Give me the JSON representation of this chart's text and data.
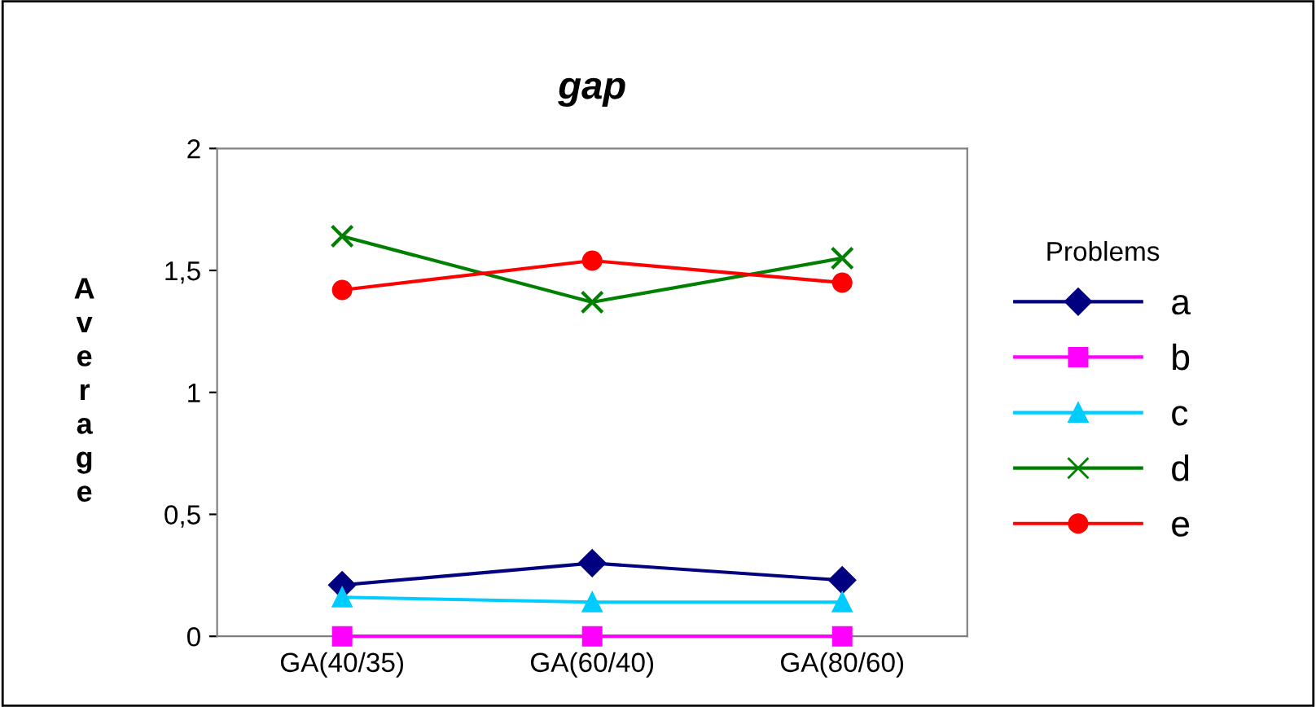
{
  "chart_data": {
    "type": "line",
    "title": "gap",
    "ylabel": "Average",
    "legend_title": "Problems",
    "categories": [
      "GA(40/35)",
      "GA(60/40)",
      "GA(80/60)"
    ],
    "series": [
      {
        "name": "a",
        "color": "#000080",
        "marker": "diamond",
        "values": [
          0.21,
          0.3,
          0.23
        ]
      },
      {
        "name": "b",
        "color": "#ff00ff",
        "marker": "square",
        "values": [
          0,
          0,
          0
        ]
      },
      {
        "name": "c",
        "color": "#00ccff",
        "marker": "triangle",
        "values": [
          0.16,
          0.14,
          0.14
        ]
      },
      {
        "name": "d",
        "color": "#008000",
        "marker": "cross",
        "values": [
          1.64,
          1.37,
          1.55
        ]
      },
      {
        "name": "e",
        "color": "#ff0000",
        "marker": "circle",
        "values": [
          1.42,
          1.54,
          1.45
        ]
      }
    ],
    "ylim": [
      0,
      2
    ],
    "yticks": [
      0,
      {
        "value": 0.5,
        "label": "0,5"
      },
      1,
      {
        "value": 1.5,
        "label": "1,5"
      },
      2
    ],
    "grid": false,
    "legend": "right"
  }
}
